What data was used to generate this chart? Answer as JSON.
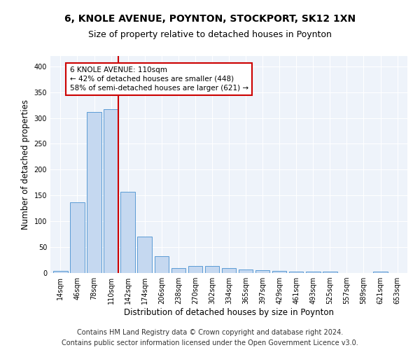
{
  "title_line1": "6, KNOLE AVENUE, POYNTON, STOCKPORT, SK12 1XN",
  "title_line2": "Size of property relative to detached houses in Poynton",
  "xlabel": "Distribution of detached houses by size in Poynton",
  "ylabel": "Number of detached properties",
  "categories": [
    "14sqm",
    "46sqm",
    "78sqm",
    "110sqm",
    "142sqm",
    "174sqm",
    "206sqm",
    "238sqm",
    "270sqm",
    "302sqm",
    "334sqm",
    "365sqm",
    "397sqm",
    "429sqm",
    "461sqm",
    "493sqm",
    "525sqm",
    "557sqm",
    "589sqm",
    "621sqm",
    "653sqm"
  ],
  "values": [
    4,
    137,
    312,
    317,
    157,
    70,
    32,
    10,
    13,
    13,
    10,
    7,
    5,
    4,
    3,
    3,
    3,
    0,
    0,
    3,
    0
  ],
  "bar_color": "#c5d8f0",
  "bar_edge_color": "#5b9bd5",
  "vline_index": 3,
  "vline_color": "#cc0000",
  "annotation_line1": "6 KNOLE AVENUE: 110sqm",
  "annotation_line2": "← 42% of detached houses are smaller (448)",
  "annotation_line3": "58% of semi-detached houses are larger (621) →",
  "annotation_box_color": "#ffffff",
  "annotation_box_edge": "#cc0000",
  "ylim": [
    0,
    420
  ],
  "yticks": [
    0,
    50,
    100,
    150,
    200,
    250,
    300,
    350,
    400
  ],
  "footer_line1": "Contains HM Land Registry data © Crown copyright and database right 2024.",
  "footer_line2": "Contains public sector information licensed under the Open Government Licence v3.0.",
  "bg_color": "#eef3fa",
  "fig_bg_color": "#ffffff",
  "grid_color": "#ffffff",
  "title_fontsize": 10,
  "subtitle_fontsize": 9,
  "axis_label_fontsize": 8.5,
  "tick_fontsize": 7,
  "footer_fontsize": 7,
  "annotation_fontsize": 7.5
}
